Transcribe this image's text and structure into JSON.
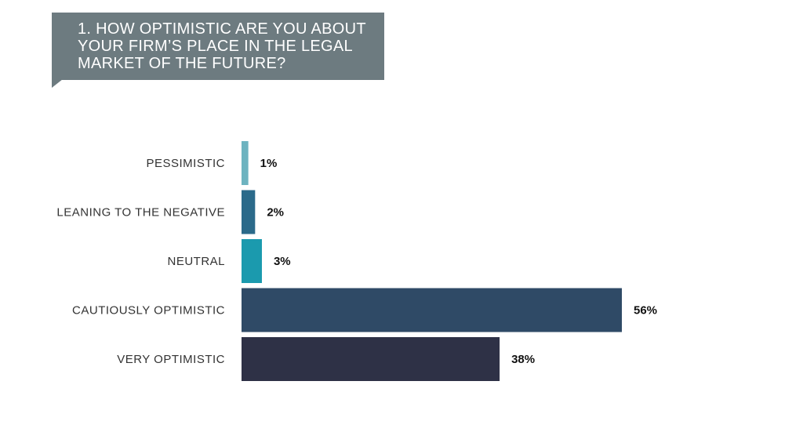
{
  "chart_data": {
    "type": "bar",
    "orientation": "horizontal",
    "title": "1. HOW OPTIMISTIC ARE YOU ABOUT\nYOUR FIRM’S PLACE IN THE LEGAL\nMARKET OF THE FUTURE?",
    "categories": [
      "PESSIMISTIC",
      "LEANING TO THE NEGATIVE",
      "NEUTRAL",
      "CAUTIOUSLY OPTIMISTIC",
      "VERY OPTIMISTIC"
    ],
    "values": [
      1,
      2,
      3,
      56,
      38
    ],
    "value_labels": [
      "1%",
      "2%",
      "3%",
      "56%",
      "38%"
    ],
    "unit": "%",
    "colors": [
      "#6db3c0",
      "#2b6a8a",
      "#1b9aae",
      "#2f4a66",
      "#2e3146"
    ],
    "xlim": [
      0,
      56
    ],
    "grid": false,
    "legend": "none"
  },
  "colors": {
    "title_bg": "#6d7b80",
    "title_text": "#ffffff",
    "label_text": "#333333",
    "value_text": "#111111"
  }
}
